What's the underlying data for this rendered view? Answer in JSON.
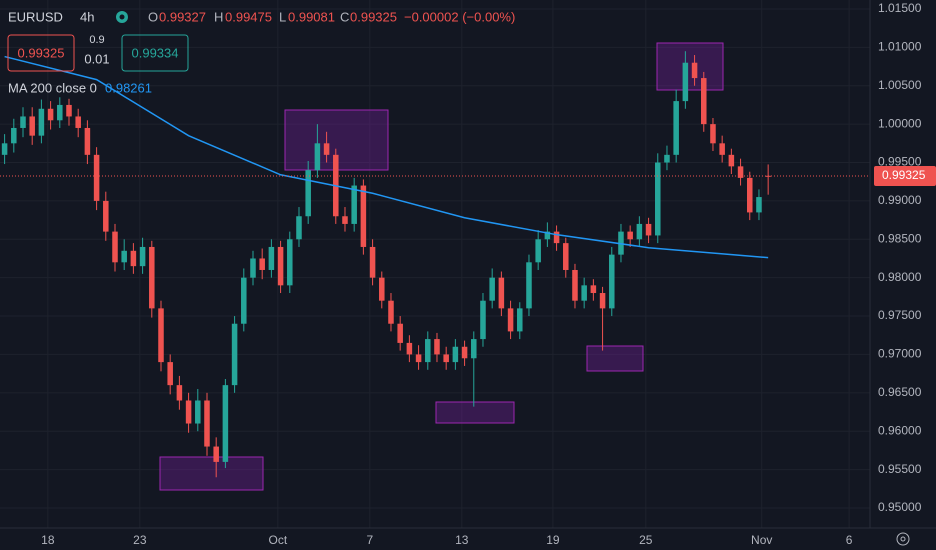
{
  "header": {
    "symbol": "EURUSD",
    "interval": "4h",
    "ohlc_labels": [
      "O",
      "H",
      "L",
      "C"
    ],
    "change": "−0.00002 (−0.00%)"
  },
  "trade": {
    "sell": "0.99325",
    "spread_top": "0.9",
    "spread": "0.01",
    "buy": "0.99334"
  },
  "chart_data": {
    "type": "candlestick",
    "grid": true,
    "up_color": "#26a69a",
    "down_color": "#ef5350",
    "x": [
      0,
      1,
      2,
      3,
      4,
      5,
      6,
      7,
      8,
      9,
      10,
      11,
      12,
      13,
      14,
      15,
      16,
      17,
      18,
      19,
      20,
      21,
      22,
      23,
      24,
      25,
      26,
      27,
      28,
      29,
      30,
      31,
      32,
      33,
      34,
      35,
      36,
      37,
      38,
      39,
      40,
      41,
      42,
      43,
      44,
      45,
      46,
      47,
      48,
      49,
      50,
      51,
      52,
      53,
      54,
      55,
      56,
      57,
      58,
      59,
      60,
      61,
      62,
      63,
      64,
      65,
      66,
      67,
      68,
      69,
      70,
      71,
      72,
      73,
      74,
      75,
      76,
      77,
      78,
      79,
      80,
      81,
      82,
      83
    ],
    "open": [
      0.996,
      0.9975,
      0.9995,
      1.001,
      0.9985,
      1.002,
      1.0005,
      1.0025,
      1.001,
      0.9995,
      0.996,
      0.99,
      0.986,
      0.982,
      0.9835,
      0.9815,
      0.984,
      0.976,
      0.969,
      0.966,
      0.964,
      0.961,
      0.964,
      0.958,
      0.956,
      0.966,
      0.974,
      0.98,
      0.9825,
      0.981,
      0.984,
      0.979,
      0.985,
      0.988,
      0.994,
      0.9975,
      0.996,
      0.988,
      0.987,
      0.992,
      0.984,
      0.98,
      0.977,
      0.974,
      0.9715,
      0.97,
      0.969,
      0.972,
      0.97,
      0.969,
      0.971,
      0.9695,
      0.972,
      0.977,
      0.98,
      0.976,
      0.973,
      0.976,
      0.982,
      0.985,
      0.986,
      0.9845,
      0.981,
      0.977,
      0.979,
      0.978,
      0.976,
      0.983,
      0.986,
      0.985,
      0.987,
      0.9855,
      0.995,
      0.996,
      1.003,
      1.008,
      1.006,
      1.0,
      0.9975,
      0.996,
      0.9945,
      0.993,
      0.9885,
      0.99327
    ],
    "high": [
      0.9987,
      1.0007,
      1.0022,
      1.0022,
      1.0032,
      1.003,
      1.0035,
      1.0033,
      1.002,
      1.0005,
      0.997,
      0.9912,
      0.987,
      0.985,
      0.9845,
      0.9852,
      0.9848,
      0.977,
      0.97,
      0.9672,
      0.965,
      0.9655,
      0.965,
      0.9592,
      0.9668,
      0.975,
      0.9812,
      0.9835,
      0.9838,
      0.985,
      0.9848,
      0.986,
      0.9892,
      0.9952,
      1.0,
      0.999,
      0.9968,
      0.9892,
      0.993,
      0.9928,
      0.985,
      0.9808,
      0.978,
      0.975,
      0.9725,
      0.9712,
      0.973,
      0.9728,
      0.971,
      0.972,
      0.9718,
      0.973,
      0.978,
      0.9812,
      0.9808,
      0.977,
      0.9768,
      0.983,
      0.9862,
      0.9872,
      0.9868,
      0.9852,
      0.9818,
      0.98,
      0.9798,
      0.9788,
      0.984,
      0.987,
      0.9868,
      0.988,
      0.9878,
      0.9962,
      0.9972,
      1.0045,
      1.0095,
      1.009,
      1.0068,
      1.0008,
      0.9985,
      0.9968,
      0.9955,
      0.9938,
      0.9915,
      0.99475
    ],
    "low": [
      0.9948,
      0.9963,
      0.9983,
      0.9973,
      0.9975,
      0.9993,
      0.9995,
      0.9998,
      0.9983,
      0.9948,
      0.9888,
      0.9848,
      0.9808,
      0.981,
      0.9805,
      0.9805,
      0.9748,
      0.9678,
      0.9648,
      0.9628,
      0.9598,
      0.96,
      0.9568,
      0.954,
      0.9552,
      0.965,
      0.973,
      0.979,
      0.9798,
      0.98,
      0.978,
      0.978,
      0.984,
      0.987,
      0.993,
      0.995,
      0.987,
      0.986,
      0.986,
      0.983,
      0.979,
      0.976,
      0.973,
      0.9705,
      0.969,
      0.968,
      0.968,
      0.969,
      0.968,
      0.968,
      0.9685,
      0.9632,
      0.971,
      0.976,
      0.975,
      0.972,
      0.972,
      0.975,
      0.981,
      0.984,
      0.9835,
      0.98,
      0.976,
      0.976,
      0.977,
      0.9705,
      0.975,
      0.982,
      0.984,
      0.984,
      0.9845,
      0.9845,
      0.994,
      0.995,
      1.002,
      1.005,
      0.999,
      0.9965,
      0.995,
      0.9935,
      0.992,
      0.9875,
      0.9875,
      0.99081
    ],
    "close": [
      0.9975,
      0.9995,
      1.001,
      0.9985,
      1.002,
      1.0005,
      1.0025,
      1.001,
      0.9995,
      0.996,
      0.99,
      0.986,
      0.982,
      0.9835,
      0.9815,
      0.984,
      0.976,
      0.969,
      0.966,
      0.964,
      0.961,
      0.964,
      0.958,
      0.956,
      0.966,
      0.974,
      0.98,
      0.9825,
      0.981,
      0.984,
      0.979,
      0.985,
      0.988,
      0.994,
      0.9975,
      0.996,
      0.988,
      0.987,
      0.992,
      0.984,
      0.98,
      0.977,
      0.974,
      0.9715,
      0.97,
      0.969,
      0.972,
      0.97,
      0.969,
      0.971,
      0.9695,
      0.972,
      0.977,
      0.98,
      0.976,
      0.973,
      0.976,
      0.982,
      0.985,
      0.986,
      0.9845,
      0.981,
      0.977,
      0.979,
      0.978,
      0.976,
      0.983,
      0.986,
      0.985,
      0.987,
      0.9855,
      0.995,
      0.996,
      1.003,
      1.008,
      1.006,
      1.0,
      0.9975,
      0.996,
      0.9945,
      0.993,
      0.9885,
      0.9905,
      0.99325
    ],
    "ma": {
      "name": "MA 200 close 0",
      "color": "#2196f3",
      "x": [
        0,
        10,
        20,
        30,
        40,
        50,
        60,
        70,
        83
      ],
      "values": [
        1.0088,
        1.0058,
        0.9985,
        0.9934,
        0.991,
        0.9878,
        0.9856,
        0.9839,
        0.98261
      ]
    },
    "xlim": [
      -0.5,
      94.07
    ],
    "ylim": [
      0.94739,
      1.01617
    ],
    "xticks": [
      {
        "value": 4.7,
        "label": "18"
      },
      {
        "value": 14.7,
        "label": "23"
      },
      {
        "value": 29.7,
        "label": "Oct"
      },
      {
        "value": 39.7,
        "label": "7"
      },
      {
        "value": 49.7,
        "label": "13"
      },
      {
        "value": 59.6,
        "label": "19"
      },
      {
        "value": 69.7,
        "label": "25"
      },
      {
        "value": 82.3,
        "label": "Nov"
      },
      {
        "value": 91.8,
        "label": "6"
      }
    ],
    "yticks": [
      {
        "value": 1.015,
        "label": "1.01500"
      },
      {
        "value": 1.01,
        "label": "1.01000"
      },
      {
        "value": 1.005,
        "label": "1.00500"
      },
      {
        "value": 1.0,
        "label": "1.00000"
      },
      {
        "value": 0.995,
        "label": "0.99500"
      },
      {
        "value": 0.99,
        "label": "0.99000"
      },
      {
        "value": 0.985,
        "label": "0.98500"
      },
      {
        "value": 0.98,
        "label": "0.98000"
      },
      {
        "value": 0.975,
        "label": "0.97500"
      },
      {
        "value": 0.97,
        "label": "0.97000"
      },
      {
        "value": 0.965,
        "label": "0.96500"
      },
      {
        "value": 0.96,
        "label": "0.96000"
      },
      {
        "value": 0.955,
        "label": "0.95500"
      },
      {
        "value": 0.95,
        "label": "0.95000"
      }
    ]
  }
}
